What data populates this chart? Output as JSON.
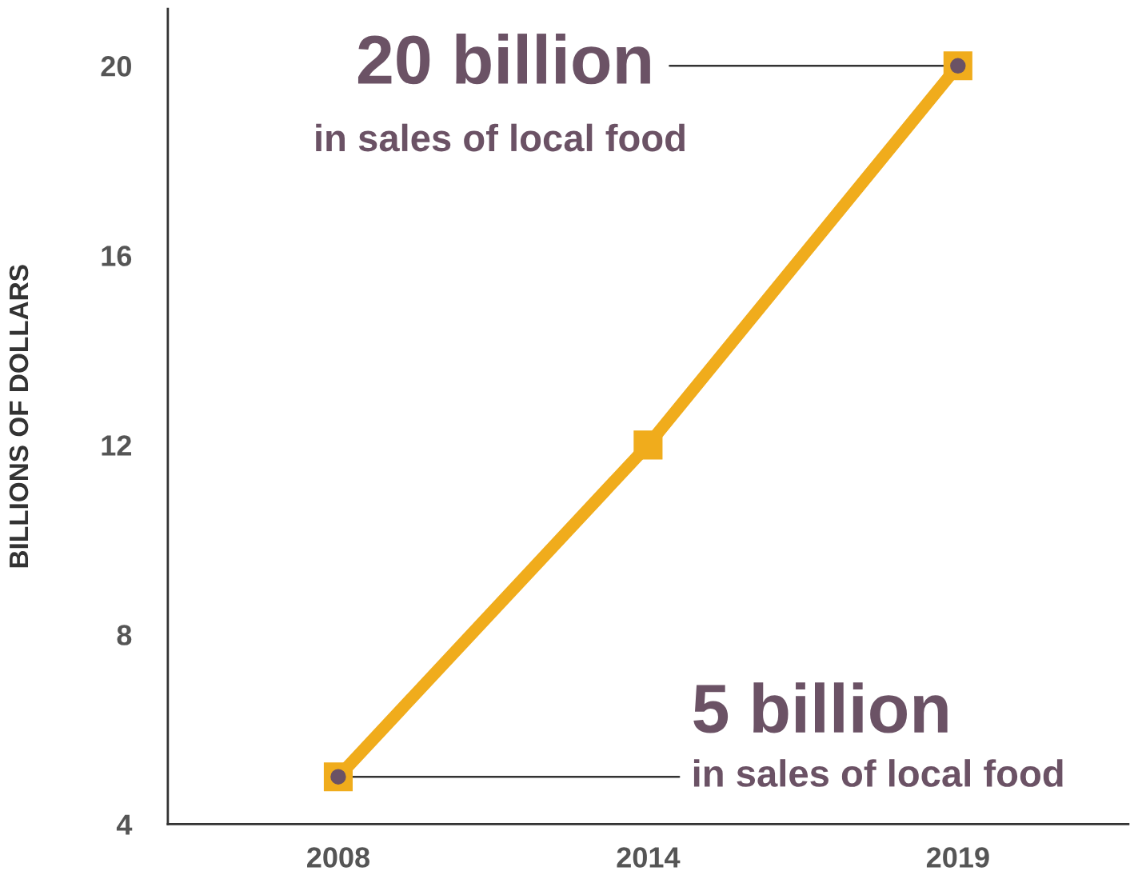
{
  "chart_data": {
    "type": "line",
    "ylabel": "BILLIONS OF DOLLARS",
    "categories": [
      "2008",
      "2014",
      "2019"
    ],
    "series": [
      {
        "color": "#f0ac1c",
        "values": [
          5,
          12,
          20
        ]
      }
    ],
    "ylim": [
      4,
      21.2
    ],
    "yticks": [
      4,
      8,
      12,
      16,
      20
    ],
    "marker": "square",
    "line_style": "solid",
    "grid": false,
    "legend": false,
    "annotations": [
      {
        "text": "20 billion\nin sales of local food",
        "x": "2019",
        "y": 20
      },
      {
        "text": "5 billion\nin sales of local food",
        "x": "2008",
        "y": 5
      }
    ]
  }
}
